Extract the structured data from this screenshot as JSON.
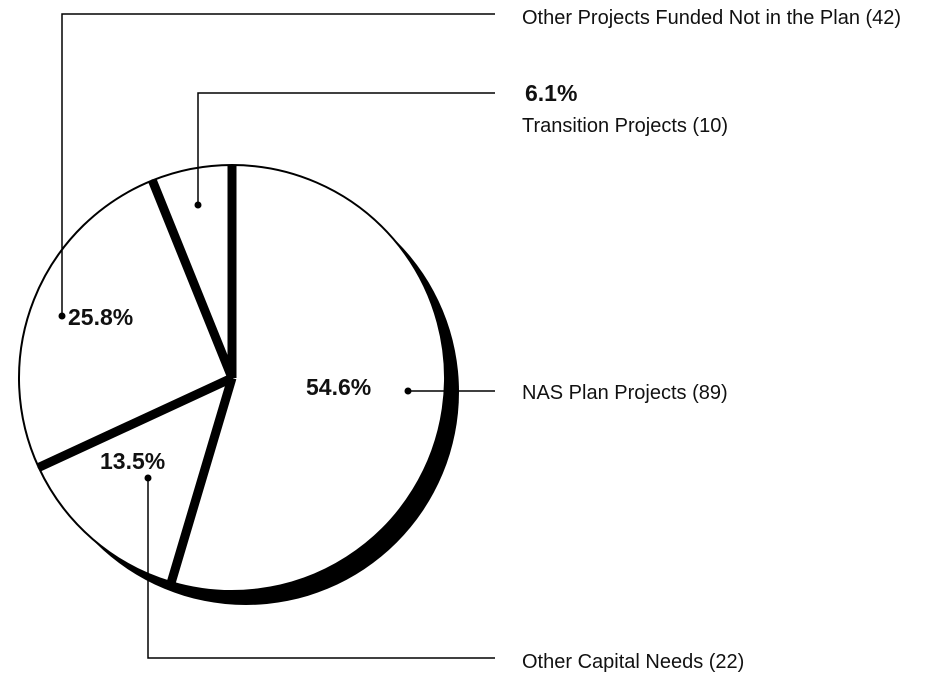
{
  "chart_data": {
    "type": "pie",
    "categories": [
      "NAS Plan Projects (89)",
      "Other Capital Needs (22)",
      "Other Projects Funded Not in the Plan (42)",
      "Transition Projects (10)"
    ],
    "values": [
      54.6,
      13.5,
      25.8,
      6.1
    ],
    "value_labels": [
      "54.6%",
      "13.5%",
      "25.8%",
      "6.1%"
    ],
    "color": "#ffffff"
  }
}
